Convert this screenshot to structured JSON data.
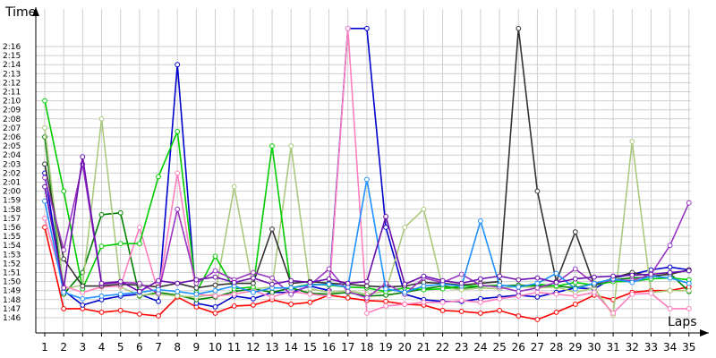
{
  "chart_data": {
    "type": "line",
    "ylabel": "Time",
    "xlabel": "Laps",
    "x": [
      1,
      2,
      3,
      4,
      5,
      6,
      7,
      8,
      9,
      10,
      11,
      12,
      13,
      14,
      15,
      16,
      17,
      18,
      19,
      20,
      21,
      22,
      23,
      24,
      25,
      26,
      27,
      28,
      29,
      30,
      31,
      32,
      33,
      34,
      35
    ],
    "xticks": [
      "1",
      "2",
      "3",
      "4",
      "5",
      "6",
      "7",
      "8",
      "9",
      "10",
      "11",
      "12",
      "13",
      "14",
      "15",
      "16",
      "17",
      "18",
      "19",
      "20",
      "21",
      "22",
      "23",
      "24",
      "25",
      "26",
      "27",
      "28",
      "29",
      "30",
      "31",
      "32",
      "33",
      "34",
      "35"
    ],
    "yticks": [
      "1:46",
      "1:47",
      "1:48",
      "1:49",
      "1:50",
      "1:51",
      "1:52",
      "1:53",
      "1:54",
      "1:55",
      "1:56",
      "1:57",
      "1:58",
      "1:59",
      "2:00",
      "2:01",
      "2:02",
      "2:03",
      "2:04",
      "2:05",
      "2:06",
      "2:07",
      "2:08",
      "2:09",
      "2:10",
      "2:11",
      "2:12",
      "2:13",
      "2:14",
      "2:15",
      "2:16"
    ],
    "yunit": "seconds",
    "ylim": [
      105,
      137
    ],
    "grid": true,
    "legend": "none",
    "series": [
      {
        "color": "#ff0000",
        "values": [
          116,
          107,
          107,
          106.6,
          106.8,
          106.4,
          106.2,
          108.3,
          107.2,
          106.5,
          107.3,
          107.4,
          108,
          107.5,
          107.7,
          108.5,
          108.2,
          107.9,
          107.8,
          107.5,
          107.4,
          106.8,
          106.7,
          106.5,
          106.8,
          106.2,
          105.8,
          106.6,
          107.5,
          108.5,
          108,
          108.8,
          109,
          109,
          109.4
        ]
      },
      {
        "color": "#0000cc",
        "values": [
          122,
          109,
          107.4,
          108,
          108.4,
          108.6,
          107.8,
          134,
          107.6,
          107.2,
          108.4,
          108.1,
          108.8,
          108.8,
          109.5,
          109,
          138,
          138,
          116,
          108.6,
          108,
          107.8,
          107.8,
          108.1,
          108.3,
          108.5,
          108.3,
          108.8,
          109.3,
          109.2,
          110.4,
          110.8,
          111.3,
          111.6,
          111.3
        ]
      },
      {
        "color": "#008000",
        "values": [
          126,
          108.6,
          111,
          117.4,
          117.6,
          108.4,
          108.8,
          108.5,
          108,
          108.3,
          108.9,
          109.2,
          108.8,
          109.3,
          108.7,
          108.6,
          108.8,
          108.4,
          108.5,
          108.8,
          109.2,
          109.5,
          109.2,
          109.5,
          109.5,
          109.6,
          109.5,
          109.5,
          109.3,
          109.8,
          110.2,
          110.4,
          110.5,
          110.9,
          108.9
        ]
      },
      {
        "color": "#aac97e",
        "values": [
          127,
          109.2,
          109.6,
          128,
          109.4,
          108.5,
          108.6,
          108.4,
          108.3,
          108.6,
          120.5,
          109.2,
          109.4,
          125,
          109.2,
          108.8,
          109,
          108.6,
          108.9,
          116,
          118,
          109.3,
          109.1,
          109.3,
          109.2,
          109.5,
          109.3,
          109.4,
          108.8,
          109.3,
          106.3,
          125.5,
          108.8,
          109,
          109
        ]
      },
      {
        "color": "#ff7fbf",
        "values": [
          117,
          109.5,
          108.8,
          109.4,
          109.5,
          116,
          108.8,
          122,
          108.6,
          108.4,
          108.6,
          109,
          108.3,
          108.9,
          108.6,
          108.4,
          138,
          106.5,
          107.3,
          107.5,
          107.7,
          107.7,
          107.9,
          107.7,
          108.1,
          108.4,
          108.8,
          108.6,
          108.4,
          108.8,
          106.5,
          108.6,
          108.7,
          107,
          107
        ]
      },
      {
        "color": "#00cc00",
        "values": [
          130,
          120,
          109.2,
          113.9,
          114.2,
          114.2,
          121.6,
          126.6,
          108.8,
          112.8,
          109.2,
          109.4,
          125,
          109.3,
          109.7,
          109.6,
          109.4,
          109.3,
          108.9,
          109.3,
          109.1,
          109.2,
          109.5,
          109.5,
          109.6,
          109.4,
          109.7,
          109.5,
          109.9,
          109.6,
          110,
          110,
          110.3,
          110.4,
          110.2
        ]
      },
      {
        "color": "#333333",
        "values": [
          123,
          112.5,
          109.5,
          109.5,
          109.7,
          109.6,
          109.4,
          109.8,
          109.3,
          109.6,
          109.8,
          109.8,
          115.8,
          109.8,
          110,
          109.8,
          109.7,
          109.5,
          109.4,
          109.5,
          109.9,
          109.8,
          109.6,
          109.8,
          110,
          138,
          120,
          110,
          115.5,
          109.6,
          110.4,
          111,
          110.6,
          110.8,
          111.3
        ]
      },
      {
        "color": "#9a35c3",
        "values": [
          121.5,
          113.5,
          123,
          109.7,
          109.9,
          109.8,
          108.7,
          118,
          109.8,
          111.2,
          110.2,
          111,
          110.4,
          108.6,
          109.6,
          111.4,
          108.9,
          108.2,
          109.8,
          108.6,
          110.4,
          109.9,
          110.8,
          109.6,
          109.4,
          108.9,
          109.3,
          109.9,
          111.4,
          109.8,
          110.2,
          110.1,
          110.8,
          114,
          118.7
        ]
      },
      {
        "color": "#1e90ff",
        "values": [
          118.9,
          108.8,
          108.1,
          108.4,
          108.6,
          108.8,
          109.1,
          108.9,
          108.6,
          109,
          109.5,
          108.8,
          109.3,
          109.3,
          109.6,
          109.7,
          109.4,
          121.3,
          109.2,
          108.8,
          109.5,
          109.7,
          109.5,
          116.7,
          109.6,
          109.4,
          109.8,
          110.9,
          109.2,
          109.8,
          110.3,
          109.9,
          110.6,
          110.4,
          109.8
        ]
      },
      {
        "color": "#6a0dad",
        "values": [
          120.5,
          109.3,
          123.8,
          109.8,
          110,
          108.9,
          110.1,
          109.8,
          110.2,
          110.5,
          109.9,
          110.4,
          109.7,
          110.1,
          109.9,
          110.3,
          109.8,
          110,
          117.2,
          109.7,
          110.6,
          110.1,
          109.8,
          110.3,
          110.6,
          110.2,
          110.4,
          109.9,
          110.3,
          110.5,
          110.6,
          110.7,
          110.8,
          111,
          111.2
        ]
      }
    ]
  }
}
